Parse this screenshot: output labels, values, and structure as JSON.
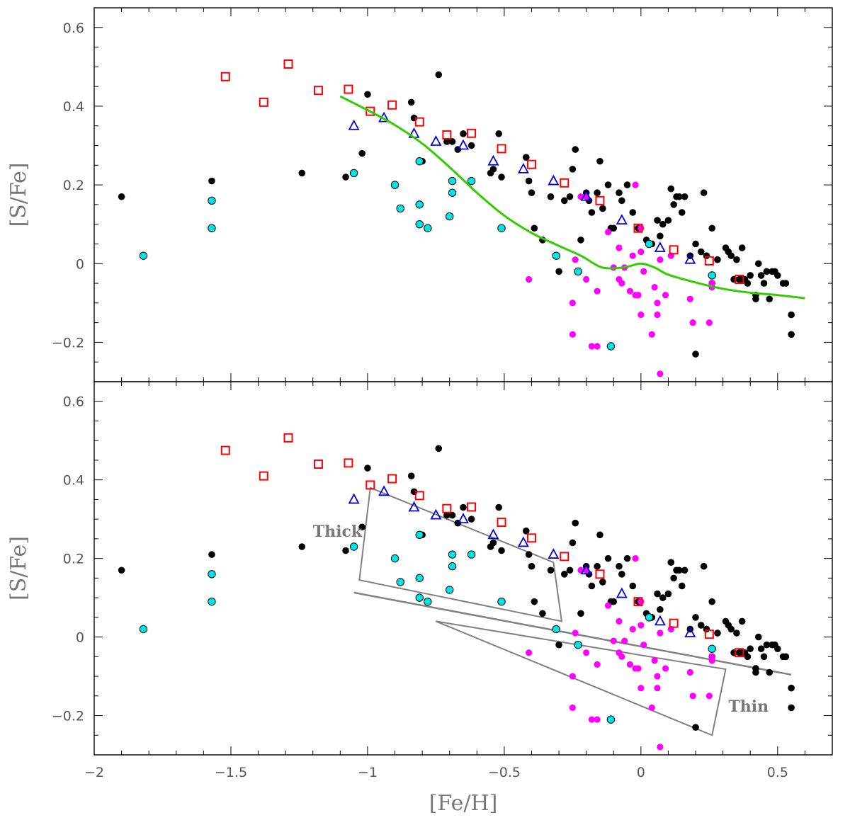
{
  "chart_data": [
    {
      "type": "scatter",
      "panel": "top",
      "xlabel": "",
      "ylabel": "[S/Fe]",
      "xlim": [
        -2.0,
        0.7
      ],
      "ylim": [
        -0.3,
        0.65
      ],
      "xticks": [
        -2,
        -1.5,
        -1,
        -0.5,
        0,
        0.5
      ],
      "yticks": [
        -0.2,
        0,
        0.2,
        0.4,
        0.6
      ],
      "ytick_labels": [
        "−0.2",
        "0",
        "0.2",
        "0.4",
        "0.6"
      ],
      "has_curve": true,
      "has_regions": false,
      "colors": {
        "black": "#000000",
        "cyan": "#00e5e5",
        "magenta": "#ff00ff",
        "red": "#ff0000",
        "blue": "#0000dd",
        "green": "#33cc00",
        "region": "#808080"
      }
    },
    {
      "type": "scatter",
      "panel": "bottom",
      "xlabel": "[Fe/H]",
      "ylabel": "[S/Fe]",
      "xlim": [
        -2.0,
        0.7
      ],
      "ylim": [
        -0.3,
        0.65
      ],
      "xticks": [
        -2,
        -1.5,
        -1,
        -0.5,
        0,
        0.5
      ],
      "xtick_labels": [
        "−2",
        "−1.5",
        "−1",
        "−0.5",
        "0",
        "0.5"
      ],
      "yticks": [
        -0.2,
        0,
        0.2,
        0.4,
        0.6
      ],
      "ytick_labels": [
        "−0.2",
        "0",
        "0.2",
        "0.4",
        "0.6"
      ],
      "has_curve": false,
      "has_regions": true,
      "region_labels": {
        "thick": "Thick",
        "thin": "Thin"
      }
    }
  ],
  "series": {
    "black": [
      [
        -1.9,
        0.17
      ],
      [
        -1.57,
        0.21
      ],
      [
        -1.24,
        0.23
      ],
      [
        -1.08,
        0.22
      ],
      [
        -1.02,
        0.28
      ],
      [
        -1.0,
        0.43
      ],
      [
        -0.84,
        0.41
      ],
      [
        -0.83,
        0.37
      ],
      [
        -0.8,
        0.26
      ],
      [
        -0.74,
        0.48
      ],
      [
        -0.71,
        0.31
      ],
      [
        -0.69,
        0.31
      ],
      [
        -0.67,
        0.29
      ],
      [
        -0.65,
        0.33
      ],
      [
        -0.62,
        0.3
      ],
      [
        -0.55,
        0.23
      ],
      [
        -0.54,
        0.24
      ],
      [
        -0.52,
        0.33
      ],
      [
        -0.51,
        0.22
      ],
      [
        -0.42,
        0.27
      ],
      [
        -0.41,
        0.21
      ],
      [
        -0.4,
        0.18
      ],
      [
        -0.39,
        0.09
      ],
      [
        -0.36,
        0.06
      ],
      [
        -0.33,
        0.17
      ],
      [
        -0.3,
        -0.02
      ],
      [
        -0.28,
        0.16
      ],
      [
        -0.26,
        0.17
      ],
      [
        -0.25,
        0.24
      ],
      [
        -0.24,
        0.29
      ],
      [
        -0.22,
        0.06
      ],
      [
        -0.2,
        0.18
      ],
      [
        -0.19,
        0.16
      ],
      [
        -0.18,
        0.13
      ],
      [
        -0.16,
        0.18
      ],
      [
        -0.15,
        0.26
      ],
      [
        -0.14,
        0.14
      ],
      [
        -0.12,
        0.2
      ],
      [
        -0.11,
        0.09
      ],
      [
        -0.1,
        0.09
      ],
      [
        -0.08,
        0.18
      ],
      [
        -0.07,
        0.16
      ],
      [
        -0.05,
        0.2
      ],
      [
        -0.03,
        0.13
      ],
      [
        -0.01,
        0.09
      ],
      [
        0.02,
        0.06
      ],
      [
        0.04,
        0.05
      ],
      [
        0.06,
        0.11
      ],
      [
        0.07,
        0.07
      ],
      [
        0.08,
        0.1
      ],
      [
        0.1,
        0.11
      ],
      [
        0.11,
        0.19
      ],
      [
        0.12,
        0.15
      ],
      [
        0.13,
        0.17
      ],
      [
        0.14,
        0.17
      ],
      [
        0.15,
        0.13
      ],
      [
        0.16,
        0.17
      ],
      [
        0.18,
        0.02
      ],
      [
        0.2,
        0.05
      ],
      [
        0.2,
        -0.23
      ],
      [
        0.22,
        0.03
      ],
      [
        0.23,
        0.18
      ],
      [
        0.24,
        0.02
      ],
      [
        0.26,
        0.09
      ],
      [
        0.26,
        -0.05
      ],
      [
        0.28,
        0.01
      ],
      [
        0.31,
        0.04
      ],
      [
        0.32,
        0.03
      ],
      [
        0.33,
        0.02
      ],
      [
        0.34,
        -0.04
      ],
      [
        0.35,
        0.01
      ],
      [
        0.36,
        -0.04
      ],
      [
        0.37,
        0.04
      ],
      [
        0.37,
        -0.04
      ],
      [
        0.38,
        -0.04
      ],
      [
        0.39,
        -0.05
      ],
      [
        0.4,
        -0.03
      ],
      [
        0.42,
        -0.08
      ],
      [
        0.42,
        -0.09
      ],
      [
        0.43,
        0.0
      ],
      [
        0.44,
        -0.03
      ],
      [
        0.45,
        -0.05
      ],
      [
        0.46,
        -0.02
      ],
      [
        0.47,
        -0.09
      ],
      [
        0.48,
        -0.02
      ],
      [
        0.49,
        -0.02
      ],
      [
        0.5,
        -0.03
      ],
      [
        0.52,
        -0.05
      ],
      [
        0.53,
        -0.05
      ],
      [
        0.55,
        -0.13
      ],
      [
        0.55,
        -0.18
      ],
      [
        0.36,
        -0.04
      ]
    ],
    "magenta": [
      [
        -0.25,
        -0.1
      ],
      [
        -0.25,
        -0.18
      ],
      [
        -0.24,
        0.01
      ],
      [
        -0.22,
        0.17
      ],
      [
        -0.2,
        0.17
      ],
      [
        -0.2,
        -0.04
      ],
      [
        -0.18,
        -0.21
      ],
      [
        -0.16,
        -0.07
      ],
      [
        -0.16,
        -0.21
      ],
      [
        -0.12,
        0.08
      ],
      [
        -0.1,
        -0.01
      ],
      [
        -0.08,
        0.04
      ],
      [
        -0.08,
        -0.04
      ],
      [
        -0.07,
        -0.05
      ],
      [
        -0.06,
        -0.01
      ],
      [
        -0.04,
        -0.07
      ],
      [
        -0.03,
        0.02
      ],
      [
        -0.02,
        -0.08
      ],
      [
        -0.01,
        -0.08
      ],
      [
        -0.02,
        0.2
      ],
      [
        0.0,
        0.09
      ],
      [
        0.0,
        0.03
      ],
      [
        0.0,
        -0.13
      ],
      [
        0.01,
        -0.02
      ],
      [
        0.04,
        -0.18
      ],
      [
        0.05,
        -0.06
      ],
      [
        0.06,
        -0.13
      ],
      [
        0.06,
        -0.1
      ],
      [
        0.07,
        0.01
      ],
      [
        0.07,
        -0.28
      ],
      [
        0.09,
        -0.08
      ],
      [
        0.11,
        0.02
      ],
      [
        0.18,
        -0.09
      ],
      [
        0.19,
        -0.15
      ],
      [
        0.26,
        -0.05
      ],
      [
        0.26,
        -0.06
      ],
      [
        0.25,
        -0.15
      ],
      [
        -0.41,
        -0.04
      ]
    ],
    "cyan": [
      [
        -1.82,
        0.02
      ],
      [
        -1.57,
        0.16
      ],
      [
        -1.57,
        0.09
      ],
      [
        -1.05,
        0.23
      ],
      [
        -0.9,
        0.2
      ],
      [
        -0.88,
        0.14
      ],
      [
        -0.81,
        0.26
      ],
      [
        -0.81,
        0.15
      ],
      [
        -0.81,
        0.1
      ],
      [
        -0.78,
        0.09
      ],
      [
        -0.7,
        0.12
      ],
      [
        -0.69,
        0.18
      ],
      [
        -0.69,
        0.21
      ],
      [
        -0.62,
        0.21
      ],
      [
        -0.51,
        0.09
      ],
      [
        -0.31,
        0.02
      ],
      [
        -0.23,
        -0.02
      ],
      [
        -0.11,
        -0.21
      ],
      [
        0.03,
        0.05
      ],
      [
        0.26,
        -0.03
      ]
    ],
    "red_squares": [
      [
        -1.52,
        0.475
      ],
      [
        -1.38,
        0.41
      ],
      [
        -1.29,
        0.507
      ],
      [
        -1.18,
        0.44
      ],
      [
        -1.07,
        0.443
      ],
      [
        -0.99,
        0.387
      ],
      [
        -0.91,
        0.403
      ],
      [
        -0.81,
        0.36
      ],
      [
        -0.71,
        0.327
      ],
      [
        -0.62,
        0.331
      ],
      [
        -0.51,
        0.292
      ],
      [
        -0.4,
        0.252
      ],
      [
        -0.28,
        0.205
      ],
      [
        -0.15,
        0.16
      ],
      [
        -0.01,
        0.09
      ],
      [
        0.12,
        0.035
      ],
      [
        0.25,
        0.007
      ],
      [
        0.36,
        -0.04
      ]
    ],
    "blue_triangles": [
      [
        -1.05,
        0.35
      ],
      [
        -0.94,
        0.37
      ],
      [
        -0.83,
        0.33
      ],
      [
        -0.75,
        0.31
      ],
      [
        -0.65,
        0.3
      ],
      [
        -0.54,
        0.26
      ],
      [
        -0.43,
        0.24
      ],
      [
        -0.32,
        0.21
      ],
      [
        -0.2,
        0.17
      ],
      [
        -0.07,
        0.11
      ],
      [
        0.07,
        0.04
      ],
      [
        0.18,
        0.01
      ]
    ],
    "curve": [
      [
        -1.1,
        0.425
      ],
      [
        -1.0,
        0.39
      ],
      [
        -0.9,
        0.352
      ],
      [
        -0.8,
        0.305
      ],
      [
        -0.7,
        0.245
      ],
      [
        -0.6,
        0.18
      ],
      [
        -0.5,
        0.122
      ],
      [
        -0.4,
        0.078
      ],
      [
        -0.3,
        0.045
      ],
      [
        -0.22,
        0.02
      ],
      [
        -0.15,
        -0.008
      ],
      [
        -0.1,
        -0.012
      ],
      [
        -0.05,
        -0.008
      ],
      [
        0.0,
        0.0
      ],
      [
        0.05,
        -0.01
      ],
      [
        0.1,
        -0.028
      ],
      [
        0.2,
        -0.048
      ],
      [
        0.3,
        -0.064
      ],
      [
        0.4,
        -0.074
      ],
      [
        0.5,
        -0.08
      ],
      [
        0.6,
        -0.088
      ]
    ],
    "regions": {
      "thick_poly": [
        [
          -0.99,
          0.38
        ],
        [
          -0.32,
          0.19
        ],
        [
          -0.29,
          0.04
        ],
        [
          -1.03,
          0.145
        ]
      ],
      "thin_poly": [
        [
          -0.75,
          0.04
        ],
        [
          0.31,
          -0.082
        ],
        [
          0.26,
          -0.25
        ]
      ],
      "separator": [
        [
          -1.05,
          0.113
        ],
        [
          0.55,
          -0.096
        ]
      ]
    }
  }
}
